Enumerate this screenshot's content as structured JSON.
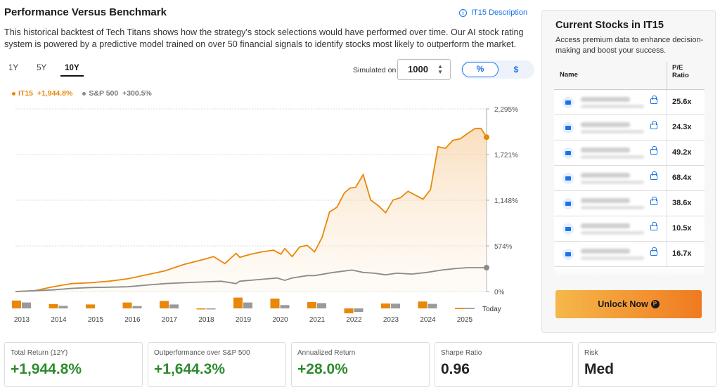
{
  "header": {
    "title": "Performance Versus Benchmark",
    "link": "IT15 Description",
    "description": "This historical backtest of Tech Titans shows how the strategy's stock selections would have performed over time. Our AI stock rating system is powered by a predictive model trained on over 50 financial signals to identify stocks most likely to outperform the market."
  },
  "controls": {
    "periods": [
      "1Y",
      "5Y",
      "10Y"
    ],
    "active_period": "10Y",
    "simulated_label": "Simulated on",
    "simulated_value": "1000",
    "spin_up": "▲",
    "spin_down": "▼",
    "toggle_percent": "%",
    "toggle_dollar": "$"
  },
  "legend": {
    "it15_name": "IT15",
    "it15_value": "+1,944.8%",
    "sp_name": "S&P 500",
    "sp_value": "+300.5%"
  },
  "chart_data": {
    "type": "area",
    "x_labels": [
      "2013",
      "2014",
      "2015",
      "2016",
      "2017",
      "2018",
      "2019",
      "2020",
      "2021",
      "2022",
      "2023",
      "2024",
      "2025"
    ],
    "y_ticks": [
      "0%",
      "574%",
      "1,148%",
      "1,721%",
      "2,295%"
    ],
    "ylim": [
      0,
      2295
    ],
    "today_label": "Today",
    "series": [
      {
        "name": "IT15",
        "color": "#e8870a",
        "x": [
          2013.0,
          2013.5,
          2014.0,
          2014.5,
          2015.0,
          2015.5,
          2016.0,
          2016.5,
          2017.0,
          2017.5,
          2018.0,
          2018.3,
          2018.6,
          2018.9,
          2019.0,
          2019.3,
          2019.6,
          2019.9,
          2020.1,
          2020.2,
          2020.4,
          2020.6,
          2020.8,
          2021.0,
          2021.2,
          2021.4,
          2021.6,
          2021.8,
          2021.95,
          2022.1,
          2022.3,
          2022.5,
          2022.7,
          2022.9,
          2023.1,
          2023.3,
          2023.5,
          2023.7,
          2023.9,
          2024.1,
          2024.2,
          2024.3,
          2024.5,
          2024.7,
          2024.9,
          2025.1,
          2025.3,
          2025.45,
          2025.6
        ],
        "values": [
          0,
          10,
          60,
          100,
          110,
          130,
          160,
          210,
          260,
          340,
          400,
          440,
          350,
          480,
          430,
          470,
          500,
          520,
          470,
          540,
          440,
          560,
          580,
          500,
          680,
          1000,
          1060,
          1240,
          1300,
          1310,
          1470,
          1150,
          1080,
          990,
          1150,
          1180,
          1260,
          1210,
          1160,
          1280,
          1550,
          1820,
          1800,
          1900,
          1920,
          1990,
          2050,
          2050,
          1940
        ]
      },
      {
        "name": "S&P 500",
        "color": "#8a8a8a",
        "x": [
          2013.0,
          2013.5,
          2014.0,
          2014.5,
          2015.0,
          2015.5,
          2016.0,
          2016.5,
          2017.0,
          2017.5,
          2018.0,
          2018.5,
          2018.9,
          2019.0,
          2019.5,
          2020.0,
          2020.2,
          2020.4,
          2020.8,
          2021.0,
          2021.5,
          2022.0,
          2022.3,
          2022.6,
          2022.9,
          2023.2,
          2023.6,
          2024.0,
          2024.4,
          2024.8,
          2025.1,
          2025.3,
          2025.6
        ],
        "values": [
          0,
          10,
          20,
          40,
          50,
          55,
          60,
          80,
          100,
          110,
          120,
          130,
          100,
          130,
          150,
          170,
          140,
          170,
          200,
          200,
          240,
          270,
          240,
          230,
          210,
          230,
          220,
          240,
          270,
          290,
          300,
          300,
          300
        ]
      }
    ],
    "annual_bars": {
      "years": [
        "2013",
        "2014",
        "2015",
        "2016",
        "2017",
        "2018",
        "2019",
        "2020",
        "2021",
        "2022",
        "2023",
        "2024",
        "2025"
      ],
      "it15": [
        40,
        22,
        20,
        30,
        38,
        -2,
        55,
        50,
        32,
        -25,
        25,
        35,
        2
      ],
      "sp500": [
        30,
        13,
        0,
        12,
        20,
        -5,
        30,
        17,
        27,
        -18,
        24,
        23,
        2
      ]
    }
  },
  "panel": {
    "title": "Current Stocks in IT15",
    "subtitle": "Access premium data to enhance decision-making and boost your success.",
    "col_name": "Name",
    "col_pe_1": "P/E",
    "col_pe_2": "Ratio",
    "pe_values": [
      "25.6x",
      "24.3x",
      "49.2x",
      "68.4x",
      "38.6x",
      "10.5x",
      "16.7x"
    ],
    "unlock_label": "Unlock Now"
  },
  "stats": [
    {
      "label": "Total Return (12Y)",
      "value": "+1,944.8%",
      "tone": "green"
    },
    {
      "label": "Outperformance over S&P 500",
      "value": "+1,644.3%",
      "tone": "green"
    },
    {
      "label": "Annualized Return",
      "value": "+28.0%",
      "tone": "green"
    },
    {
      "label": "Sharpe Ratio",
      "value": "0.96",
      "tone": "dark"
    },
    {
      "label": "Risk",
      "value": "Med",
      "tone": "dark"
    }
  ]
}
